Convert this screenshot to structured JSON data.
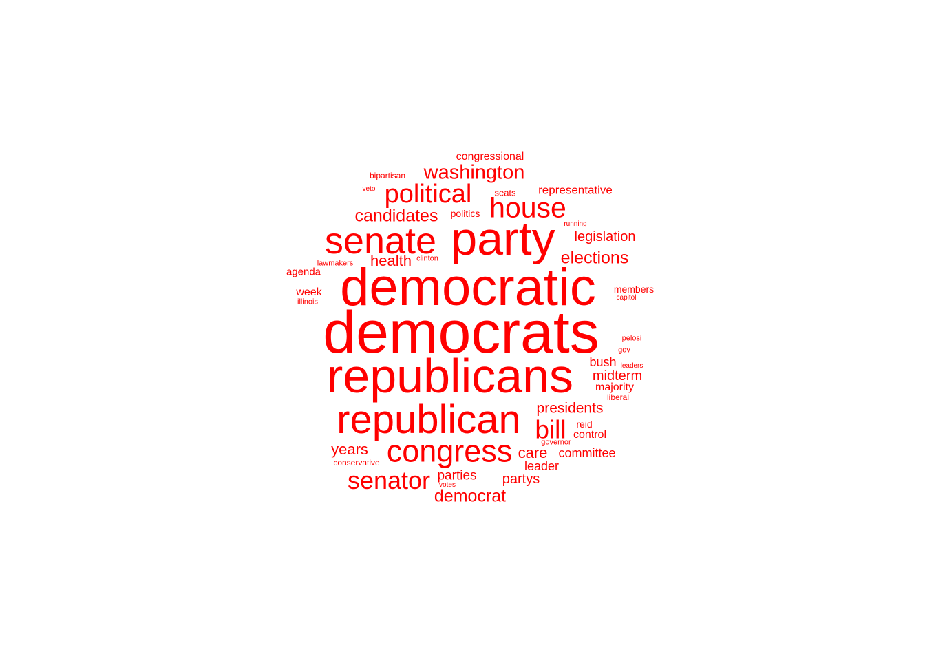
{
  "wordcloud": {
    "color": "#ff0000",
    "words": [
      {
        "text": "democrats"
      },
      {
        "text": "democratic"
      },
      {
        "text": "republicans"
      },
      {
        "text": "republican"
      },
      {
        "text": "party"
      },
      {
        "text": "senate"
      },
      {
        "text": "congress"
      },
      {
        "text": "house"
      },
      {
        "text": "political"
      },
      {
        "text": "senator"
      },
      {
        "text": "bill"
      },
      {
        "text": "washington"
      },
      {
        "text": "candidates"
      },
      {
        "text": "elections"
      },
      {
        "text": "democrat"
      },
      {
        "text": "health"
      },
      {
        "text": "presidents"
      },
      {
        "text": "years"
      },
      {
        "text": "care"
      },
      {
        "text": "midterm"
      },
      {
        "text": "legislation"
      },
      {
        "text": "partys"
      },
      {
        "text": "parties"
      },
      {
        "text": "committee"
      },
      {
        "text": "bush"
      },
      {
        "text": "leader"
      },
      {
        "text": "representative"
      },
      {
        "text": "congressional"
      },
      {
        "text": "control"
      },
      {
        "text": "majority"
      },
      {
        "text": "week"
      },
      {
        "text": "agenda"
      },
      {
        "text": "politics"
      },
      {
        "text": "members"
      },
      {
        "text": "reid"
      },
      {
        "text": "seats"
      },
      {
        "text": "bipartisan"
      },
      {
        "text": "conservative"
      },
      {
        "text": "liberal"
      },
      {
        "text": "pelosi"
      },
      {
        "text": "gov"
      },
      {
        "text": "illinois"
      },
      {
        "text": "clinton"
      },
      {
        "text": "governor"
      },
      {
        "text": "lawmakers"
      },
      {
        "text": "capitol"
      },
      {
        "text": "running"
      },
      {
        "text": "leaders"
      },
      {
        "text": "veto"
      },
      {
        "text": "votes"
      }
    ]
  }
}
